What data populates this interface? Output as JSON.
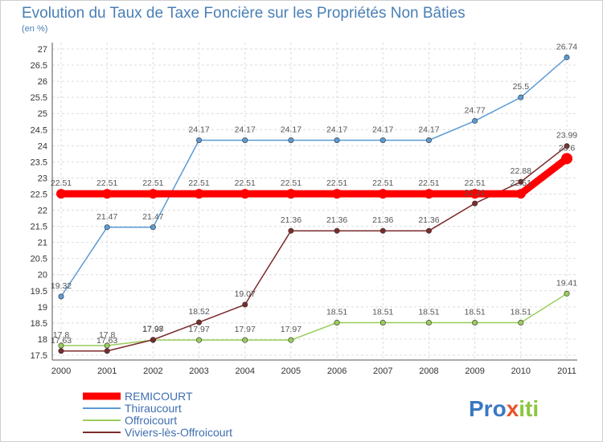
{
  "chart_data": {
    "type": "line",
    "title": "Evolution du Taux de Taxe Foncière sur les Propriétés Non Bâties",
    "ylabel": "(en %)",
    "xlabel": "",
    "categories": [
      "2000",
      "2001",
      "2002",
      "2003",
      "2004",
      "2005",
      "2006",
      "2007",
      "2008",
      "2009",
      "2010",
      "2011"
    ],
    "ylim": [
      17.5,
      27
    ],
    "yticks": [
      "17.5",
      "18",
      "18.5",
      "19",
      "19.5",
      "20",
      "20.5",
      "21",
      "21.5",
      "22",
      "22.5",
      "23",
      "23.5",
      "24",
      "24.5",
      "25",
      "25.5",
      "26",
      "26.5",
      "27"
    ],
    "grid": true,
    "series": [
      {
        "name": "REMICOURT",
        "color": "#ff0000",
        "values": [
          22.51,
          22.51,
          22.51,
          22.51,
          22.51,
          22.51,
          22.51,
          22.51,
          22.51,
          22.51,
          22.51,
          23.6
        ],
        "labels": [
          "22.51",
          "22.51",
          "22.51",
          "22.51",
          "22.51",
          "22.51",
          "22.51",
          "22.51",
          "22.51",
          "22.51",
          "22.51",
          "23.6"
        ]
      },
      {
        "name": "Thiraucourt",
        "color": "#5b9bd5",
        "values": [
          19.32,
          21.47,
          21.47,
          24.17,
          24.17,
          24.17,
          24.17,
          24.17,
          24.17,
          24.77,
          25.5,
          26.74
        ],
        "labels": [
          "19.32",
          "21.47",
          "21.47",
          "24.17",
          "24.17",
          "24.17",
          "24.17",
          "24.17",
          "24.17",
          "24.77",
          "25.5",
          "26.74"
        ]
      },
      {
        "name": "Offroicourt",
        "color": "#9acd5a",
        "values": [
          17.8,
          17.8,
          17.97,
          17.97,
          17.97,
          17.97,
          18.51,
          18.51,
          18.51,
          18.51,
          18.51,
          19.41
        ],
        "labels": [
          "17.8",
          "17.8",
          "17.97",
          "17.97",
          "17.97",
          "17.97",
          "18.51",
          "18.51",
          "18.51",
          "18.51",
          "18.51",
          "19.41"
        ]
      },
      {
        "name": "Viviers-lès-Offroicourt",
        "color": "#7b2b2b",
        "values": [
          17.63,
          17.63,
          17.98,
          18.52,
          19.07,
          21.36,
          21.36,
          21.36,
          21.36,
          22.21,
          22.88,
          23.99
        ],
        "labels": [
          "17.63",
          "17.63",
          "17.98",
          "18.52",
          "19.07",
          "21.36",
          "21.36",
          "21.36",
          "21.36",
          "22.21",
          "22.88",
          "23.99"
        ]
      }
    ],
    "legend_position": "bottom-left"
  },
  "brand": {
    "part1": "Pro",
    "part2": "x",
    "part3": "iti"
  }
}
